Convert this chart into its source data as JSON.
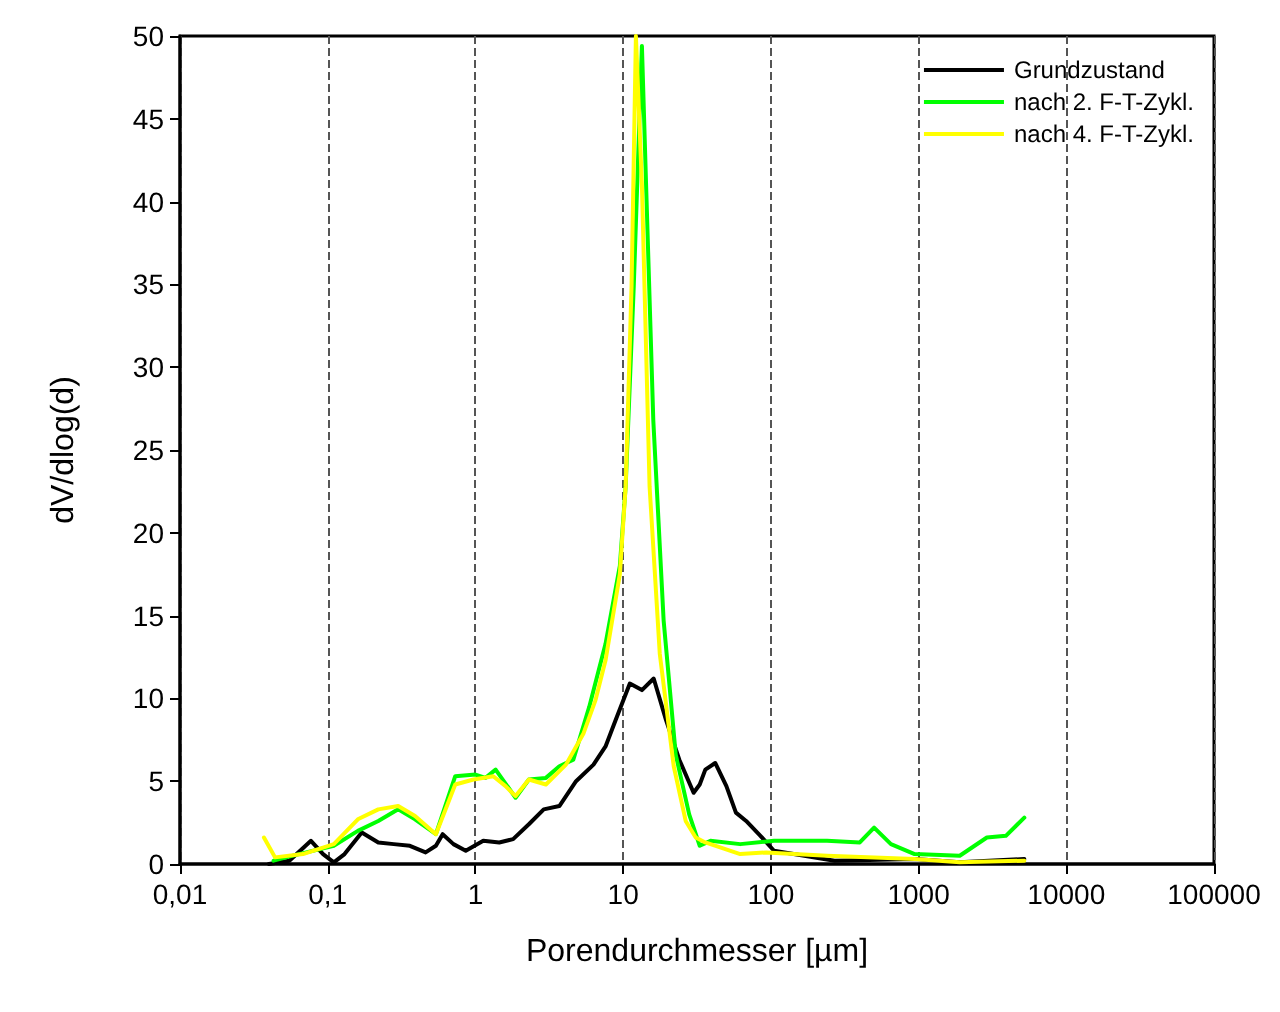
{
  "chart_data": {
    "type": "line",
    "xlabel": "Porendurchmesser [µm]",
    "ylabel": "dV/dlog(d)",
    "log": "x",
    "grid": "x",
    "legend": "top right",
    "marker": "none",
    "line_style": "solid",
    "xlim": [
      0.01,
      100000
    ],
    "xticks": [
      {
        "value": 0.01,
        "label": "0,01"
      },
      {
        "value": 0.1,
        "label": "0,1"
      },
      1,
      10,
      100,
      1000,
      10000,
      100000
    ],
    "ylim": [
      0,
      50
    ],
    "yticks": [
      0,
      5,
      10,
      15,
      20,
      25,
      30,
      35,
      40,
      45,
      50
    ],
    "series": [
      {
        "name": "Grundzustand",
        "color": "#000000",
        "x": [
          0.04,
          0.055,
          0.077,
          0.093,
          0.11,
          0.13,
          0.17,
          0.22,
          0.28,
          0.36,
          0.46,
          0.54,
          0.6,
          0.71,
          0.86,
          1.13,
          1.45,
          1.8,
          2.3,
          2.9,
          3.7,
          4.8,
          6.3,
          7.6,
          8.9,
          11.1,
          13.4,
          16.1,
          19.5,
          24,
          30,
          33,
          36,
          42,
          50,
          58,
          68,
          85,
          105,
          270,
          940,
          1900,
          5200
        ],
        "values": [
          0,
          0.2,
          1.4,
          0.6,
          0.1,
          0.6,
          1.9,
          1.3,
          1.2,
          1.1,
          0.7,
          1.1,
          1.8,
          1.2,
          0.8,
          1.4,
          1.3,
          1.5,
          2.4,
          3.3,
          3.5,
          5,
          6,
          7.1,
          8.7,
          10.9,
          10.5,
          11.2,
          8.7,
          6.3,
          4.3,
          4.8,
          5.7,
          6.1,
          4.7,
          3.1,
          2.6,
          1.7,
          0.8,
          0.2,
          0.3,
          0.1,
          0.3
        ]
      },
      {
        "name": "nach 2. F-T-Zykl.",
        "color": "#00ff00",
        "x": [
          0.043,
          0.064,
          0.11,
          0.16,
          0.22,
          0.3,
          0.39,
          0.54,
          0.73,
          1.0,
          1.17,
          1.37,
          1.87,
          2.3,
          3.0,
          3.7,
          4.6,
          5.9,
          7.6,
          9.5,
          10.4,
          11.8,
          13.4,
          14.3,
          16,
          18.8,
          22.7,
          28,
          33,
          39,
          62,
          105,
          240,
          400,
          500,
          650,
          940,
          1900,
          2900,
          3900,
          5200
        ],
        "values": [
          0.2,
          0.6,
          1.1,
          2,
          2.6,
          3.3,
          2.7,
          1.8,
          5.3,
          5.4,
          5.2,
          5.7,
          4,
          5.1,
          5.2,
          5.9,
          6.3,
          9.5,
          13.3,
          18,
          22.8,
          34.9,
          49.4,
          41,
          26.8,
          14.7,
          6.6,
          3,
          1.1,
          1.4,
          1.2,
          1.4,
          1.4,
          1.3,
          2.2,
          1.2,
          0.6,
          0.5,
          1.6,
          1.7,
          2.8
        ]
      },
      {
        "name": "nach 4. F-T-Zykl.",
        "color": "#ffff00",
        "x": [
          0.037,
          0.044,
          0.068,
          0.11,
          0.16,
          0.22,
          0.3,
          0.39,
          0.54,
          0.73,
          0.97,
          1.32,
          1.6,
          1.87,
          2.3,
          3.0,
          4.1,
          5.4,
          6.5,
          7.6,
          9.5,
          10.4,
          11.4,
          12.2,
          13.4,
          15.1,
          17.7,
          22,
          26.5,
          31,
          36,
          62,
          93,
          240,
          940,
          1900,
          5200
        ],
        "values": [
          1.6,
          0.4,
          0.6,
          1.2,
          2.7,
          3.3,
          3.5,
          2.9,
          1.8,
          4.8,
          5.1,
          5.3,
          4.7,
          4.1,
          5.1,
          4.8,
          6,
          7.9,
          9.9,
          12.3,
          17.5,
          22.8,
          34.9,
          50,
          41,
          22.8,
          12.7,
          5.9,
          2.6,
          1.6,
          1.3,
          0.6,
          0.7,
          0.5,
          0.3,
          0.1,
          0.2
        ]
      }
    ]
  }
}
